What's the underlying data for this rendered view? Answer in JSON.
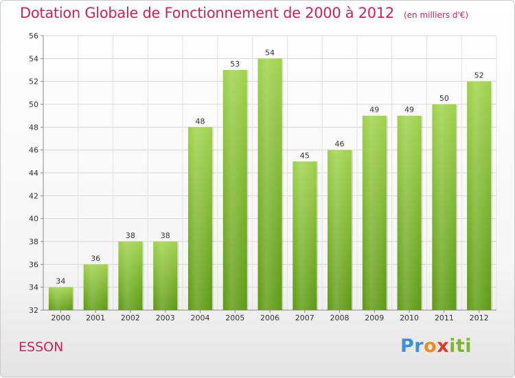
{
  "chart_data": {
    "type": "bar",
    "title": "Dotation Globale de Fonctionnement de 2000 à 2012",
    "subtitle": "(en milliers d'€)",
    "categories": [
      "2000",
      "2001",
      "2002",
      "2003",
      "2004",
      "2005",
      "2006",
      "2007",
      "2008",
      "2009",
      "2010",
      "2011",
      "2012"
    ],
    "values": [
      34,
      36,
      38,
      38,
      48,
      53,
      54,
      45,
      46,
      49,
      49,
      50,
      52
    ],
    "ylim": [
      32,
      56
    ],
    "yticks": [
      32,
      34,
      36,
      38,
      40,
      42,
      44,
      46,
      48,
      50,
      52,
      54,
      56
    ],
    "grid": true,
    "bar_color": "#7fbf2a"
  },
  "footer": {
    "commune": "ESSON",
    "logo_letters": [
      "P",
      "r",
      "o",
      "x",
      "i",
      "t",
      "i"
    ],
    "logo_colors": [
      "#3d8fd6",
      "#3d8fd6",
      "#f08a1c",
      "#e03a2a",
      "#7db62a",
      "#7db62a",
      "#7db62a"
    ]
  }
}
